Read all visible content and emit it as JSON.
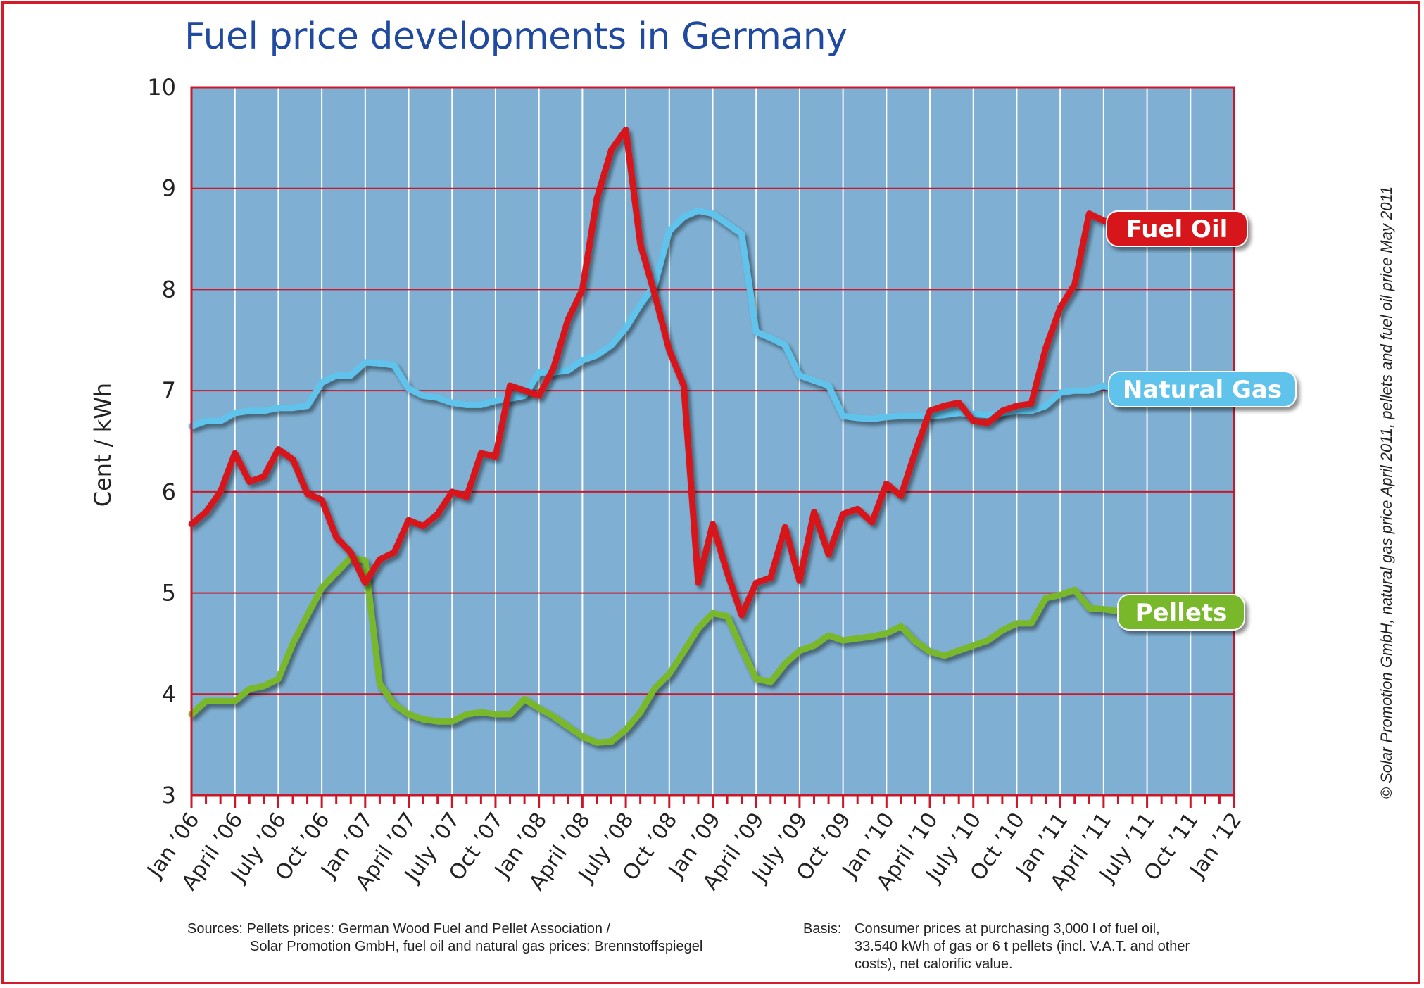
{
  "title": "Fuel price developments in Germany",
  "colors": {
    "frame": "#d51a2a",
    "title": "#1f4aa0",
    "plot_background": "#7fb0d3",
    "grid_horizontal": "#c8182a",
    "grid_vertical": "#ffffff",
    "fuel_oil": "#d7141f",
    "natural_gas": "#5fc3ec",
    "pellets": "#79b82a"
  },
  "sources": {
    "label": "Sources:",
    "line1": "Pellets prices: German Wood Fuel and Pellet Association /",
    "line2": "Solar Promotion GmbH, fuel oil and natural gas prices: Brennstoffspiegel"
  },
  "basis": {
    "label": "Basis:",
    "line1": "Consumer prices at purchasing 3,000 l of fuel oil,",
    "line2": "33.540 kWh of gas or 6 t pellets (incl. V.A.T. and other",
    "line3": "costs), net calorific value."
  },
  "copyright": "© Solar Promotion GmbH, natural gas price  April 2011, pellets and fuel oil price May 2011",
  "chart_data": {
    "type": "line",
    "title": "Fuel price developments in Germany",
    "ylabel": "Cent / kWh",
    "xlabel": "",
    "ylim": [
      3,
      10
    ],
    "yticks": [
      3,
      4,
      5,
      6,
      7,
      8,
      9,
      10
    ],
    "x_start": "2006-01",
    "x_end": "2012-01",
    "xtick_labels": [
      "Jan ’06",
      "April ’06",
      "July ’06",
      "Oct ’06",
      "Jan ’07",
      "April ’07",
      "July ’07",
      "Oct ’07",
      "Jan ’08",
      "April ’08",
      "July ’08",
      "Oct ’08",
      "Jan ’09",
      "April ’09",
      "July ’09",
      "Oct ’09",
      "Jan ’10",
      "April ’10",
      "July ’10",
      "Oct ’10",
      "Jan ’11",
      "April ’11",
      "July ’11",
      "Oct ’11",
      "Jan ’12"
    ],
    "grid": {
      "horizontal": true,
      "vertical": true
    },
    "legend": "inline labels at line ends",
    "series": [
      {
        "name": "Fuel Oil",
        "x": [
          "2006-01",
          "2006-02",
          "2006-03",
          "2006-04",
          "2006-05",
          "2006-06",
          "2006-07",
          "2006-08",
          "2006-09",
          "2006-10",
          "2006-11",
          "2006-12",
          "2007-01",
          "2007-02",
          "2007-03",
          "2007-04",
          "2007-05",
          "2007-06",
          "2007-07",
          "2007-08",
          "2007-09",
          "2007-10",
          "2007-11",
          "2007-12",
          "2008-01",
          "2008-02",
          "2008-03",
          "2008-04",
          "2008-05",
          "2008-06",
          "2008-07",
          "2008-08",
          "2008-09",
          "2008-10",
          "2008-11",
          "2008-12",
          "2009-01",
          "2009-02",
          "2009-03",
          "2009-04",
          "2009-05",
          "2009-06",
          "2009-07",
          "2009-08",
          "2009-09",
          "2009-10",
          "2009-11",
          "2009-12",
          "2010-01",
          "2010-02",
          "2010-03",
          "2010-04",
          "2010-05",
          "2010-06",
          "2010-07",
          "2010-08",
          "2010-09",
          "2010-10",
          "2010-11",
          "2010-12",
          "2011-01",
          "2011-02",
          "2011-03",
          "2011-04",
          "2011-05"
        ],
        "values": [
          5.68,
          5.8,
          6.0,
          6.38,
          6.1,
          6.15,
          6.42,
          6.32,
          5.98,
          5.92,
          5.55,
          5.4,
          5.1,
          5.33,
          5.4,
          5.72,
          5.66,
          5.78,
          6.0,
          5.95,
          6.38,
          6.35,
          7.05,
          7.0,
          6.95,
          7.22,
          7.7,
          8.0,
          8.9,
          9.38,
          9.58,
          8.45,
          7.95,
          7.4,
          7.05,
          5.1,
          5.68,
          5.2,
          4.78,
          5.1,
          5.15,
          5.65,
          5.12,
          5.8,
          5.38,
          5.78,
          5.83,
          5.7,
          6.08,
          5.96,
          6.4,
          6.8,
          6.85,
          6.88,
          6.7,
          6.68,
          6.8,
          6.85,
          6.87,
          7.42,
          7.82,
          8.05,
          8.75,
          8.68,
          8.65
        ]
      },
      {
        "name": "Natural Gas",
        "x": [
          "2006-01",
          "2006-02",
          "2006-03",
          "2006-04",
          "2006-05",
          "2006-06",
          "2006-07",
          "2006-08",
          "2006-09",
          "2006-10",
          "2006-11",
          "2006-12",
          "2007-01",
          "2007-02",
          "2007-03",
          "2007-04",
          "2007-05",
          "2007-06",
          "2007-07",
          "2007-08",
          "2007-09",
          "2007-10",
          "2007-11",
          "2007-12",
          "2008-01",
          "2008-02",
          "2008-03",
          "2008-04",
          "2008-05",
          "2008-06",
          "2008-07",
          "2008-08",
          "2008-09",
          "2008-10",
          "2008-11",
          "2008-12",
          "2009-01",
          "2009-02",
          "2009-03",
          "2009-04",
          "2009-05",
          "2009-06",
          "2009-07",
          "2009-08",
          "2009-09",
          "2009-10",
          "2009-11",
          "2009-12",
          "2010-01",
          "2010-02",
          "2010-03",
          "2010-04",
          "2010-05",
          "2010-06",
          "2010-07",
          "2010-08",
          "2010-09",
          "2010-10",
          "2010-11",
          "2010-12",
          "2011-01",
          "2011-02",
          "2011-03",
          "2011-04"
        ],
        "values": [
          6.65,
          6.7,
          6.7,
          6.78,
          6.8,
          6.8,
          6.83,
          6.83,
          6.85,
          7.08,
          7.15,
          7.15,
          7.28,
          7.27,
          7.25,
          7.02,
          6.95,
          6.93,
          6.88,
          6.86,
          6.86,
          6.9,
          6.92,
          6.95,
          7.18,
          7.18,
          7.2,
          7.3,
          7.35,
          7.45,
          7.62,
          7.85,
          8.05,
          8.58,
          8.72,
          8.78,
          8.75,
          8.65,
          8.55,
          7.58,
          7.52,
          7.45,
          7.15,
          7.1,
          7.05,
          6.75,
          6.73,
          6.72,
          6.74,
          6.75,
          6.75,
          6.75,
          6.76,
          6.78,
          6.77,
          6.76,
          6.78,
          6.8,
          6.8,
          6.85,
          6.98,
          7.0,
          7.0,
          7.05
        ]
      },
      {
        "name": "Pellets",
        "x": [
          "2006-01",
          "2006-02",
          "2006-03",
          "2006-04",
          "2006-05",
          "2006-06",
          "2006-07",
          "2006-08",
          "2006-09",
          "2006-10",
          "2006-11",
          "2006-12",
          "2007-01",
          "2007-02",
          "2007-03",
          "2007-04",
          "2007-05",
          "2007-06",
          "2007-07",
          "2007-08",
          "2007-09",
          "2007-10",
          "2007-11",
          "2007-12",
          "2008-01",
          "2008-02",
          "2008-03",
          "2008-04",
          "2008-05",
          "2008-06",
          "2008-07",
          "2008-08",
          "2008-09",
          "2008-10",
          "2008-11",
          "2008-12",
          "2009-01",
          "2009-02",
          "2009-03",
          "2009-04",
          "2009-05",
          "2009-06",
          "2009-07",
          "2009-08",
          "2009-09",
          "2009-10",
          "2009-11",
          "2009-12",
          "2010-01",
          "2010-02",
          "2010-03",
          "2010-04",
          "2010-05",
          "2010-06",
          "2010-07",
          "2010-08",
          "2010-09",
          "2010-10",
          "2010-11",
          "2010-12",
          "2011-01",
          "2011-02",
          "2011-03",
          "2011-04",
          "2011-05"
        ],
        "values": [
          3.8,
          3.93,
          3.93,
          3.93,
          4.05,
          4.08,
          4.15,
          4.5,
          4.78,
          5.05,
          5.2,
          5.35,
          5.32,
          4.1,
          3.9,
          3.8,
          3.75,
          3.73,
          3.73,
          3.8,
          3.82,
          3.8,
          3.8,
          3.95,
          3.86,
          3.78,
          3.68,
          3.58,
          3.52,
          3.53,
          3.65,
          3.82,
          4.06,
          4.2,
          4.42,
          4.65,
          4.8,
          4.77,
          4.45,
          4.15,
          4.12,
          4.3,
          4.43,
          4.48,
          4.58,
          4.53,
          4.55,
          4.57,
          4.6,
          4.67,
          4.52,
          4.42,
          4.38,
          4.43,
          4.48,
          4.53,
          4.63,
          4.7,
          4.7,
          4.95,
          4.98,
          5.03,
          4.85,
          4.84,
          4.82
        ]
      }
    ]
  }
}
